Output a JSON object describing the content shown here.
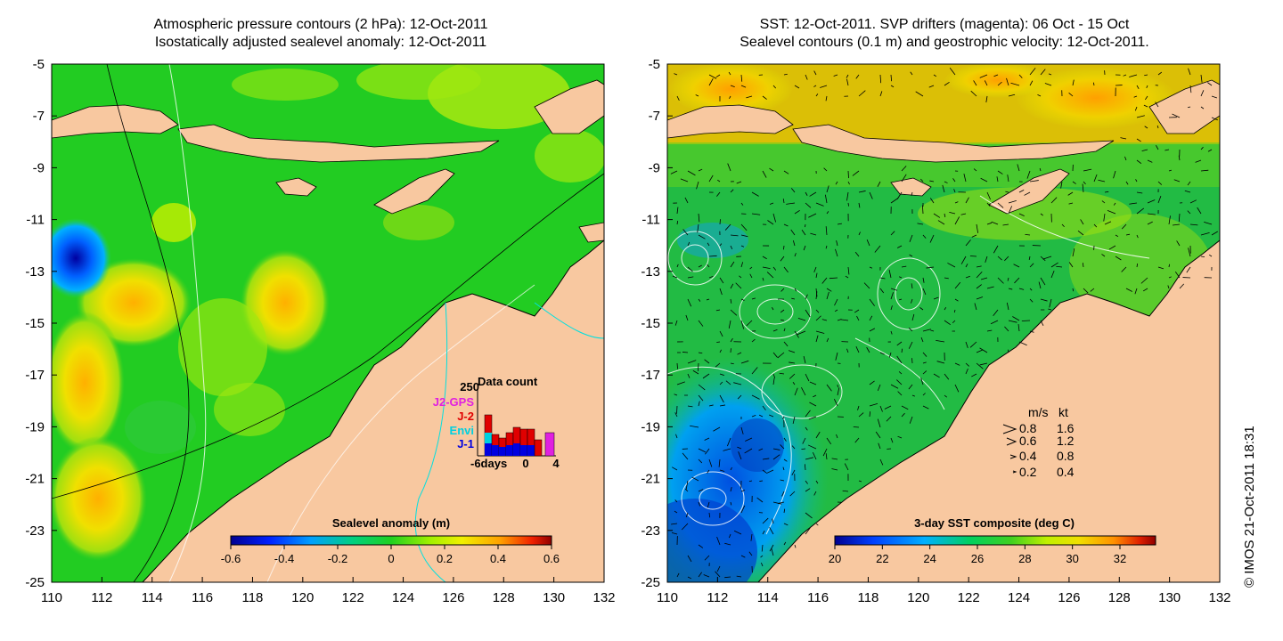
{
  "left_panel": {
    "title_line1": "Atmospheric pressure contours (2 hPa): 12-Oct-2011",
    "title_line2": "Isostatically adjusted sealevel anomaly: 12-Oct-2011",
    "colorbar": {
      "label": "Sealevel anomaly (m)",
      "ticks": [
        "-0.6",
        "-0.4",
        "-0.2",
        "0",
        "0.2",
        "0.4",
        "0.6"
      ],
      "range": [
        -0.6,
        0.6
      ]
    },
    "data_count": {
      "title": "Data count",
      "max_label": "250",
      "missions": [
        {
          "name": "J2-GPS",
          "color": "#e020e0"
        },
        {
          "name": "J-2",
          "color": "#e00000"
        },
        {
          "name": "Envi",
          "color": "#00d0e0"
        },
        {
          "name": "J-1",
          "color": "#0000e0"
        }
      ],
      "axis_labels": [
        "-6days",
        "0",
        "4"
      ]
    }
  },
  "right_panel": {
    "title_line1": "SST: 12-Oct-2011. SVP drifters (magenta): 06 Oct - 15 Oct",
    "title_line2": "Sealevel contours (0.1 m) and geostrophic velocity: 12-Oct-2011.",
    "colorbar": {
      "label": "3-day SST composite (deg C)",
      "ticks": [
        "20",
        "22",
        "24",
        "26",
        "28",
        "30",
        "32"
      ],
      "range": [
        20,
        33.5
      ]
    },
    "velocity_legend": {
      "header_ms": "m/s",
      "header_kt": "kt",
      "rows": [
        {
          "ms": "0.8",
          "kt": "1.6"
        },
        {
          "ms": "0.6",
          "kt": "1.2"
        },
        {
          "ms": "0.4",
          "kt": "0.8"
        },
        {
          "ms": "0.2",
          "kt": "0.4"
        }
      ]
    }
  },
  "axes": {
    "x_ticks": [
      "110",
      "112",
      "114",
      "116",
      "118",
      "120",
      "122",
      "124",
      "126",
      "128",
      "130",
      "132"
    ],
    "y_ticks": [
      "-5",
      "-7",
      "-9",
      "-11",
      "-13",
      "-15",
      "-17",
      "-19",
      "-21",
      "-23",
      "-25"
    ],
    "lon_range": [
      110,
      132
    ],
    "lat_range": [
      -25,
      -5
    ]
  },
  "credit": "© IMOS 21-Oct-2011 18:31",
  "colors": {
    "land": "#f8c8a0",
    "ocean_sla": "#22cc22",
    "ocean_sst": "#22bb44",
    "coast": "#000000"
  }
}
